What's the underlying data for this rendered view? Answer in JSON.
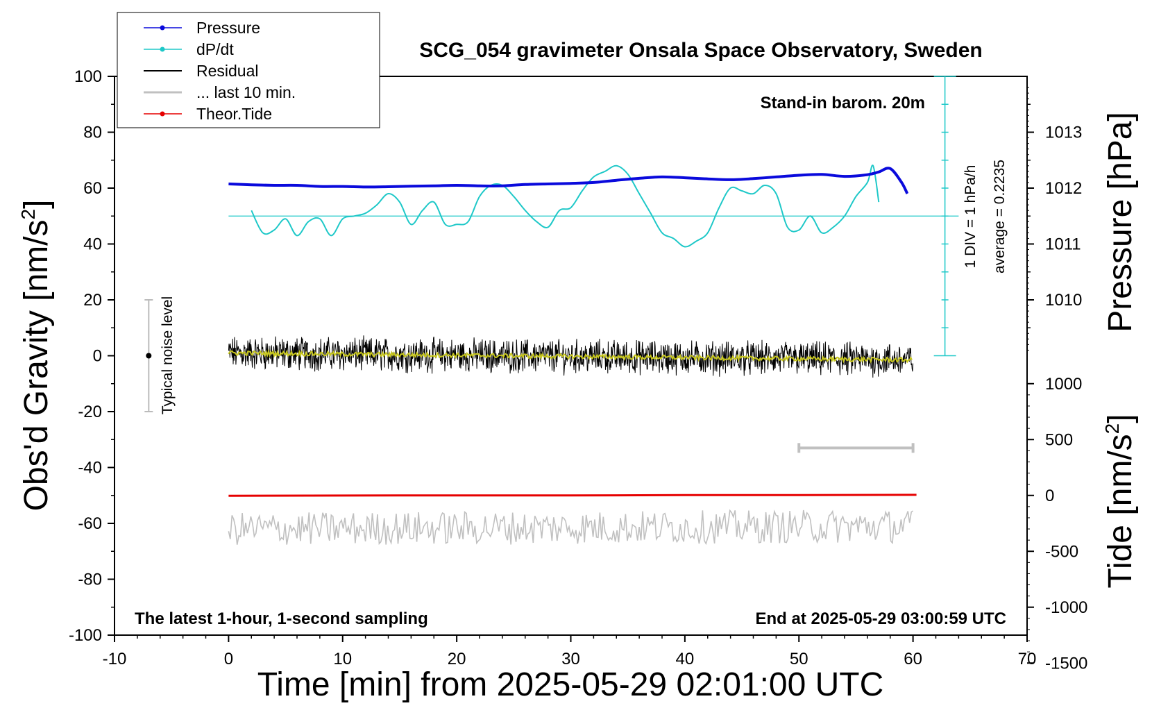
{
  "chart_data": {
    "type": "line",
    "title": "SCG_054 gravimeter Onsala Space Observatory, Sweden",
    "xlabel": "Time [min] from 2025-05-29 02:01:00 UTC",
    "ylabel_left": "Obs'd Gravity [nm/s",
    "ylabel_left_sup": "2",
    "ylabel_left_close": "]",
    "ylabel_right_top": "Pressure [hPa]",
    "ylabel_right_bottom": "Tide [nm/s",
    "ylabel_right_bottom_sup": "2",
    "ylabel_right_bottom_close": "]",
    "xlim": [
      -10,
      70
    ],
    "ylim": [
      -100,
      100
    ],
    "x_ticks": [
      "-10",
      "0",
      "10",
      "20",
      "30",
      "40",
      "50",
      "60",
      "70"
    ],
    "y_ticks": [
      "100",
      "80",
      "60",
      "40",
      "20",
      "0",
      "-20",
      "-40",
      "-60",
      "-80",
      "-100"
    ],
    "pressure_ticks": [
      "1013",
      "1012",
      "1011",
      "1010"
    ],
    "tide_ticks": [
      "1000",
      "500",
      "0",
      "-500",
      "-1000",
      "-1500"
    ],
    "legend": {
      "placement": "top-left",
      "entries": [
        {
          "label": "Pressure",
          "color": "#0a0adc",
          "marker": true
        },
        {
          "label": "dP/dt",
          "color": "#1ec8c8",
          "marker": true
        },
        {
          "label": "Residual",
          "color": "#000000",
          "marker": false
        },
        {
          "label": "... last 10 min.",
          "color": "#c0c0c0",
          "marker": false
        },
        {
          "label": "Theor.Tide",
          "color": "#e60000",
          "marker": true
        }
      ]
    },
    "annotations": {
      "barometer": "Stand-in barom. 20m",
      "div_label": "1 DIV = 1 hPa/h",
      "average_label": "average = 0.2235",
      "noise_label": "Typical noise level",
      "latest_note": "The latest 1-hour, 1-second sampling",
      "end_note": "End at 2025-05-29 03:00:59 UTC"
    },
    "noise_bar": {
      "x": -7,
      "center": 0,
      "low": -20,
      "high": 20
    },
    "last10_bar": {
      "from": 50,
      "to": 60,
      "y": -33
    },
    "dpdt_zero_line": 50,
    "series": [
      {
        "name": "Pressure",
        "color": "#0a0adc",
        "x": [
          0,
          2,
          4,
          6,
          8,
          10,
          12,
          14,
          16,
          18,
          20,
          22,
          24,
          26,
          28,
          30,
          32,
          34,
          36,
          38,
          40,
          42,
          44,
          46,
          48,
          50,
          52,
          54,
          56,
          57,
          58,
          59,
          59.5
        ],
        "values": [
          61.5,
          61.2,
          61.0,
          61.0,
          60.6,
          60.6,
          60.4,
          60.5,
          60.7,
          60.8,
          61.0,
          60.8,
          60.8,
          61.3,
          61.5,
          61.7,
          62.0,
          62.8,
          63.5,
          64.0,
          63.7,
          63.3,
          63.0,
          63.4,
          64.0,
          64.6,
          64.9,
          64.2,
          64.8,
          65.8,
          67.0,
          62.0,
          58.0
        ]
      },
      {
        "name": "dP/dt",
        "color": "#1ec8c8",
        "x": [
          2,
          3,
          4,
          5,
          6,
          7,
          8,
          9,
          10,
          11,
          12,
          13,
          14,
          15,
          16,
          17,
          18,
          19,
          20,
          21,
          22,
          23,
          24,
          25,
          26,
          27,
          28,
          29,
          30,
          31,
          32,
          33,
          34,
          35,
          36,
          37,
          38,
          39,
          40,
          41,
          42,
          43,
          44,
          45,
          46,
          47,
          48,
          49,
          50,
          51,
          52,
          53,
          54,
          55,
          56,
          56.5,
          57
        ],
        "values": [
          52,
          44,
          45,
          49,
          43,
          48,
          49,
          43,
          49,
          50,
          51,
          54,
          58,
          55,
          47,
          52,
          55,
          47,
          47,
          48,
          57,
          61,
          61,
          57,
          52,
          48,
          46,
          52,
          53,
          59,
          64,
          66,
          68,
          65,
          58,
          51,
          44,
          42,
          39,
          41,
          44,
          53,
          60,
          59,
          58,
          61,
          58,
          46,
          45,
          50,
          44,
          46,
          50,
          57,
          62,
          68,
          55
        ]
      },
      {
        "name": "Residual",
        "color": "#000000",
        "x": [
          0,
          60
        ],
        "values": [
          1.0,
          -1.5
        ],
        "noise_amplitude": 5
      },
      {
        "name": "Residual smoothed",
        "color": "#c8c81e",
        "x": [
          0,
          60
        ],
        "values": [
          1.0,
          -1.5
        ]
      },
      {
        "name": "... last 10 min.",
        "color": "#c0c0c0",
        "x": [
          0,
          60
        ],
        "values": [
          -62,
          -61
        ],
        "noise_amplitude": 6
      },
      {
        "name": "Theor.Tide",
        "color": "#e60000",
        "x": [
          0,
          15,
          30,
          40,
          50,
          60.3
        ],
        "values": [
          -50.1,
          -50.0,
          -50.0,
          -49.9,
          -49.9,
          -49.8
        ]
      }
    ]
  },
  "colors": {
    "pressure": "#0a0adc",
    "dpdt": "#1ec8c8",
    "residual": "#000000",
    "smoothed": "#c8c81e",
    "last10": "#c0c0c0",
    "tide": "#e60000"
  }
}
